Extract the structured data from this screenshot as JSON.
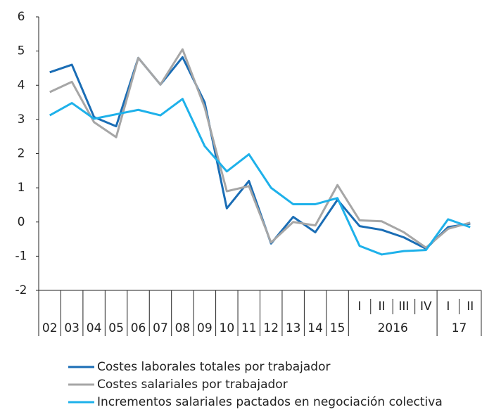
{
  "chart_data": {
    "type": "line",
    "categories": [
      "02",
      "03",
      "04",
      "05",
      "06",
      "07",
      "08",
      "09",
      "10",
      "11",
      "12",
      "13",
      "14",
      "15",
      "I",
      "II",
      "III",
      "IV",
      "I",
      "II"
    ],
    "category_groups": [
      {
        "label": "2016",
        "size": 4
      },
      {
        "label": "17",
        "size": 2
      }
    ],
    "ylim": [
      -2,
      6
    ],
    "yticks": [
      -2,
      -1,
      0,
      1,
      2,
      3,
      4,
      5,
      6
    ],
    "grid": false,
    "legend": "bottom",
    "series": [
      {
        "name": "Costes laborales totales por trabajador",
        "color": "#1a6db5",
        "values": [
          4.38,
          4.6,
          3.07,
          2.8,
          4.8,
          4.02,
          4.82,
          3.5,
          0.4,
          1.2,
          -0.63,
          0.15,
          -0.3,
          0.65,
          -0.12,
          -0.23,
          -0.45,
          -0.78,
          -0.15,
          -0.05
        ]
      },
      {
        "name": "Costes salariales por trabajador",
        "color": "#a6a6a6",
        "values": [
          3.8,
          4.1,
          2.92,
          2.48,
          4.8,
          4.02,
          5.05,
          3.35,
          0.9,
          1.05,
          -0.6,
          0.0,
          -0.1,
          1.08,
          0.05,
          0.02,
          -0.3,
          -0.75,
          -0.2,
          -0.02
        ]
      },
      {
        "name": "Incrementos salariales pactados en negociación colectiva",
        "color": "#1eb1ea",
        "values": [
          3.12,
          3.48,
          3.02,
          3.15,
          3.28,
          3.12,
          3.6,
          2.22,
          1.48,
          1.98,
          1.0,
          0.52,
          0.52,
          0.7,
          -0.7,
          -0.95,
          -0.85,
          -0.82,
          0.08,
          -0.15
        ]
      }
    ]
  }
}
